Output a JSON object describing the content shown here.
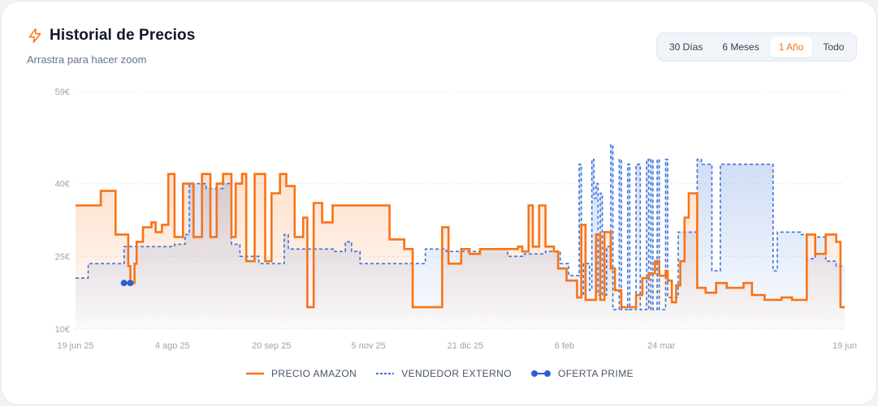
{
  "header": {
    "title": "Historial de Precios",
    "subtitle": "Arrastra para hacer zoom",
    "title_icon": "lightning-bolt-icon"
  },
  "range_selector": {
    "options": [
      "30 Días",
      "6 Meses",
      "1 Año",
      "Todo"
    ],
    "selected": "1 Año"
  },
  "colors": {
    "amazon": "#f97316",
    "external": "#3b73d9",
    "prime": "#2f5fd0",
    "active_accent": "#f97316"
  },
  "chart_data": {
    "type": "line",
    "title": "Historial de Precios",
    "ylim": [
      10,
      59
    ],
    "yticks": [
      {
        "value": 59,
        "label": "59€"
      },
      {
        "value": 40,
        "label": "40€"
      },
      {
        "value": 25,
        "label": "25€"
      },
      {
        "value": 10,
        "label": "10€"
      }
    ],
    "xlim": [
      "2025-06-19",
      "2026-06-19"
    ],
    "xticks": [
      {
        "date": "2025-06-19",
        "label": "19 jun 25"
      },
      {
        "date": "2025-08-04",
        "label": "4 ago 25"
      },
      {
        "date": "2025-09-20",
        "label": "20 sep 25"
      },
      {
        "date": "2025-11-05",
        "label": "5 nov 25"
      },
      {
        "date": "2025-12-21",
        "label": "21 dic 25"
      },
      {
        "date": "2026-02-06",
        "label": "6 feb"
      },
      {
        "date": "2026-03-24",
        "label": "24 mar"
      },
      {
        "date": "2026-06-19",
        "label": "19 jun"
      }
    ],
    "grid": true,
    "legend_position": "bottom",
    "series": [
      {
        "name": "PRECIO AMAZON",
        "style": "solid",
        "step": true,
        "area_fill": true,
        "points": [
          [
            "2025-06-19",
            35.5
          ],
          [
            "2025-07-01",
            38.5
          ],
          [
            "2025-07-08",
            29.5
          ],
          [
            "2025-07-14",
            23
          ],
          [
            "2025-07-15",
            19.5
          ],
          [
            "2025-07-17",
            23.5
          ],
          [
            "2025-07-18",
            28
          ],
          [
            "2025-07-21",
            31
          ],
          [
            "2025-07-25",
            32
          ],
          [
            "2025-07-27",
            30
          ],
          [
            "2025-07-30",
            31.5
          ],
          [
            "2025-08-02",
            42
          ],
          [
            "2025-08-05",
            29
          ],
          [
            "2025-08-09",
            40
          ],
          [
            "2025-08-14",
            29
          ],
          [
            "2025-08-18",
            42
          ],
          [
            "2025-08-22",
            29
          ],
          [
            "2025-08-25",
            40
          ],
          [
            "2025-08-28",
            42
          ],
          [
            "2025-09-01",
            29
          ],
          [
            "2025-09-03",
            40
          ],
          [
            "2025-09-06",
            42
          ],
          [
            "2025-09-08",
            24
          ],
          [
            "2025-09-12",
            42
          ],
          [
            "2025-09-17",
            24
          ],
          [
            "2025-09-20",
            38
          ],
          [
            "2025-09-24",
            42
          ],
          [
            "2025-09-27",
            39.5
          ],
          [
            "2025-10-01",
            29
          ],
          [
            "2025-10-05",
            33
          ],
          [
            "2025-10-07",
            14.5
          ],
          [
            "2025-10-10",
            36
          ],
          [
            "2025-10-14",
            32
          ],
          [
            "2025-10-19",
            35.5
          ],
          [
            "2025-11-15",
            28.5
          ],
          [
            "2025-11-22",
            26.5
          ],
          [
            "2025-11-26",
            14.5
          ],
          [
            "2025-12-10",
            31
          ],
          [
            "2025-12-13",
            23.5
          ],
          [
            "2025-12-19",
            26.5
          ],
          [
            "2025-12-23",
            25.5
          ],
          [
            "2025-12-28",
            26.5
          ],
          [
            "2026-01-15",
            27
          ],
          [
            "2026-01-17",
            26
          ],
          [
            "2026-01-20",
            35.5
          ],
          [
            "2026-01-22",
            27
          ],
          [
            "2026-01-25",
            35.5
          ],
          [
            "2026-01-28",
            27
          ],
          [
            "2026-02-01",
            26
          ],
          [
            "2026-02-03",
            22.5
          ],
          [
            "2026-02-07",
            20
          ],
          [
            "2026-02-12",
            16.5
          ],
          [
            "2026-02-14",
            31.5
          ],
          [
            "2026-02-16",
            16
          ],
          [
            "2026-02-21",
            29.5
          ],
          [
            "2026-02-23",
            16
          ],
          [
            "2026-02-25",
            30
          ],
          [
            "2026-02-28",
            22.5
          ],
          [
            "2026-03-02",
            18
          ],
          [
            "2026-03-05",
            14.5
          ],
          [
            "2026-03-12",
            17
          ],
          [
            "2026-03-15",
            20.5
          ],
          [
            "2026-03-18",
            21.5
          ],
          [
            "2026-03-21",
            24
          ],
          [
            "2026-03-23",
            21
          ],
          [
            "2026-03-26",
            22
          ],
          [
            "2026-03-27",
            20
          ],
          [
            "2026-03-29",
            15.5
          ],
          [
            "2026-03-31",
            19
          ],
          [
            "2026-04-02",
            24
          ],
          [
            "2026-04-04",
            33
          ],
          [
            "2026-04-06",
            38
          ],
          [
            "2026-04-10",
            18.5
          ],
          [
            "2026-04-14",
            17.5
          ],
          [
            "2026-04-19",
            19.5
          ],
          [
            "2026-04-24",
            18.5
          ],
          [
            "2026-05-02",
            19.5
          ],
          [
            "2026-05-06",
            17
          ],
          [
            "2026-05-12",
            16
          ],
          [
            "2026-05-20",
            16.5
          ],
          [
            "2026-05-25",
            16
          ],
          [
            "2026-06-01",
            29.5
          ],
          [
            "2026-06-05",
            25.5
          ],
          [
            "2026-06-10",
            29.5
          ],
          [
            "2026-06-15",
            28
          ],
          [
            "2026-06-17",
            14.5
          ],
          [
            "2026-06-19",
            14.5
          ]
        ]
      },
      {
        "name": "VENDEDOR EXTERNO",
        "style": "dashed",
        "step": true,
        "area_fill": true,
        "points": [
          [
            "2025-06-19",
            20.5
          ],
          [
            "2025-06-25",
            23.5
          ],
          [
            "2025-07-12",
            27
          ],
          [
            "2025-08-05",
            27.5
          ],
          [
            "2025-08-10",
            29.5
          ],
          [
            "2025-08-12",
            40
          ],
          [
            "2025-08-20",
            39
          ],
          [
            "2025-08-28",
            40
          ],
          [
            "2025-09-01",
            27.5
          ],
          [
            "2025-09-05",
            25
          ],
          [
            "2025-09-14",
            23.5
          ],
          [
            "2025-09-26",
            29.5
          ],
          [
            "2025-09-28",
            26.5
          ],
          [
            "2025-10-13",
            26.5
          ],
          [
            "2025-10-20",
            26
          ],
          [
            "2025-10-25",
            28
          ],
          [
            "2025-10-28",
            26
          ],
          [
            "2025-11-01",
            23.5
          ],
          [
            "2025-12-02",
            26.5
          ],
          [
            "2025-12-12",
            26
          ],
          [
            "2025-12-18",
            26
          ],
          [
            "2025-12-28",
            26.5
          ],
          [
            "2026-01-10",
            25
          ],
          [
            "2026-01-18",
            25.5
          ],
          [
            "2026-01-28",
            26
          ],
          [
            "2026-02-04",
            23.5
          ],
          [
            "2026-02-08",
            21
          ],
          [
            "2026-02-13",
            44
          ],
          [
            "2026-02-14",
            17
          ],
          [
            "2026-02-15",
            23.5
          ],
          [
            "2026-02-18",
            18
          ],
          [
            "2026-02-19",
            45
          ],
          [
            "2026-02-20",
            37
          ],
          [
            "2026-02-21",
            40
          ],
          [
            "2026-02-22",
            17
          ],
          [
            "2026-02-23",
            38
          ],
          [
            "2026-02-24",
            17
          ],
          [
            "2026-02-26",
            27
          ],
          [
            "2026-02-28",
            48
          ],
          [
            "2026-03-01",
            14
          ],
          [
            "2026-03-04",
            45
          ],
          [
            "2026-03-05",
            14
          ],
          [
            "2026-03-08",
            44
          ],
          [
            "2026-03-09",
            14
          ],
          [
            "2026-03-12",
            44
          ],
          [
            "2026-03-14",
            14
          ],
          [
            "2026-03-17",
            45
          ],
          [
            "2026-03-18",
            14
          ],
          [
            "2026-03-19",
            45
          ],
          [
            "2026-03-20",
            14
          ],
          [
            "2026-03-22",
            45
          ],
          [
            "2026-03-23",
            14
          ],
          [
            "2026-03-26",
            45
          ],
          [
            "2026-03-27",
            16.5
          ],
          [
            "2026-04-01",
            30
          ],
          [
            "2026-04-06",
            30
          ],
          [
            "2026-04-10",
            45
          ],
          [
            "2026-04-12",
            44
          ],
          [
            "2026-04-17",
            22
          ],
          [
            "2026-04-21",
            44
          ],
          [
            "2026-05-16",
            22
          ],
          [
            "2026-05-18",
            30
          ],
          [
            "2026-05-29",
            29.5
          ],
          [
            "2026-06-01",
            24.5
          ],
          [
            "2026-06-05",
            29
          ],
          [
            "2026-06-10",
            24
          ],
          [
            "2026-06-15",
            23
          ],
          [
            "2026-06-19",
            23
          ]
        ]
      },
      {
        "name": "OFERTA PRIME",
        "style": "markers",
        "points": [
          [
            "2025-07-12",
            19.5
          ],
          [
            "2025-07-15",
            19.5
          ]
        ]
      }
    ]
  },
  "legend": {
    "amazon_label": "PRECIO AMAZON",
    "external_label": "VENDEDOR EXTERNO",
    "prime_label": "OFERTA PRIME"
  }
}
